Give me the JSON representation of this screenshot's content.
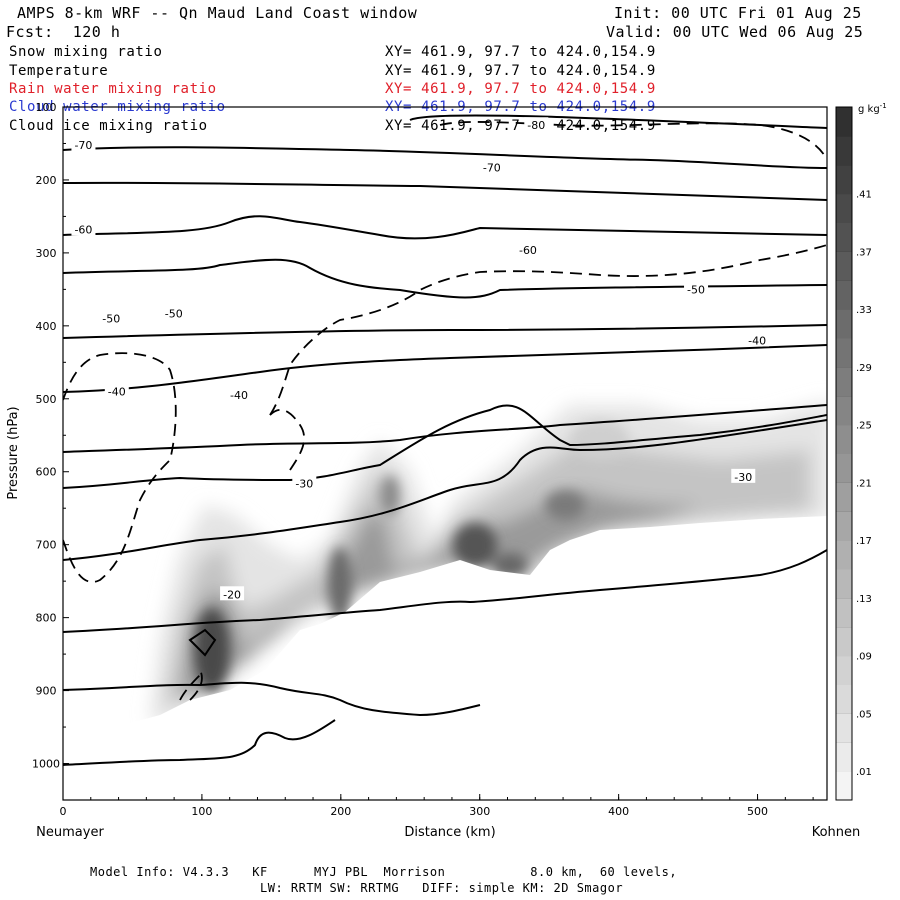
{
  "header": {
    "title": "AMPS 8-km WRF -- Qn Maud Land Coast window",
    "init": "Init: 00 UTC Fri 01 Aug 25",
    "forecast": "Fcst:  120 h",
    "valid": "Valid: 00 UTC Wed 06 Aug 25"
  },
  "fields": [
    {
      "name": "Snow mixing ratio",
      "xy": "XY= 461.9, 97.7 to 424.0,154.9",
      "color": "#000000"
    },
    {
      "name": "Temperature",
      "xy": "XY= 461.9, 97.7 to 424.0,154.9",
      "color": "#000000"
    },
    {
      "name": "Rain water mixing ratio",
      "xy": "XY= 461.9, 97.7 to 424.0,154.9",
      "color": "#e0202a"
    },
    {
      "name": "Cloud water mixing ratio",
      "xy": "XY= 461.9, 97.7 to 424.0,154.9",
      "color": "#2a3ad0"
    },
    {
      "name": "Cloud ice mixing ratio",
      "xy": "XY= 461.9, 97.7 to 424.0,154.9",
      "color": "#000000"
    }
  ],
  "footer": {
    "line1": "Model Info: V4.3.3   KF      MYJ PBL  Morrison           8.0 km,  60 levels,",
    "line2": "LW: RRTM SW: RRTMG   DIFF: simple KM: 2D Smagor"
  },
  "chart_data": {
    "type": "cross-section",
    "xlabel": "Distance (km)",
    "ylabel": "Pressure (hPa)",
    "xlim": [
      0,
      550
    ],
    "ylim": [
      1050,
      100
    ],
    "x_ticks": [
      0,
      100,
      200,
      300,
      400,
      500
    ],
    "y_ticks": [
      100,
      200,
      300,
      400,
      500,
      600,
      700,
      800,
      900,
      1000
    ],
    "x_end_labels": {
      "left": "Neumayer",
      "right": "Kohnen"
    },
    "colorbar": {
      "unit": "g kg",
      "unit_exponent": "-1",
      "labels": [
        ".41",
        ".37",
        ".33",
        ".29",
        ".25",
        ".21",
        ".17",
        ".13",
        ".09",
        ".05",
        ".01"
      ]
    },
    "temperature_contour_labels": [
      {
        "label": "-80",
        "x": 340,
        "p": 125
      },
      {
        "label": "-70",
        "x": 14,
        "p": 152
      },
      {
        "label": "-70",
        "x": 308,
        "p": 183
      },
      {
        "label": "-60",
        "x": 14,
        "p": 268
      },
      {
        "label": "-60",
        "x": 334,
        "p": 296
      },
      {
        "label": "-50",
        "x": 34,
        "p": 390
      },
      {
        "label": "-50",
        "x": 79,
        "p": 383
      },
      {
        "label": "-50",
        "x": 455,
        "p": 350
      },
      {
        "label": "-40",
        "x": 38,
        "p": 490
      },
      {
        "label": "-40",
        "x": 126,
        "p": 495
      },
      {
        "label": "-40",
        "x": 499,
        "p": 420
      },
      {
        "label": "-30",
        "x": 173,
        "p": 616
      },
      {
        "label": "-30",
        "x": 489,
        "p": 607
      },
      {
        "label": "-20",
        "x": 121,
        "p": 768
      }
    ]
  }
}
